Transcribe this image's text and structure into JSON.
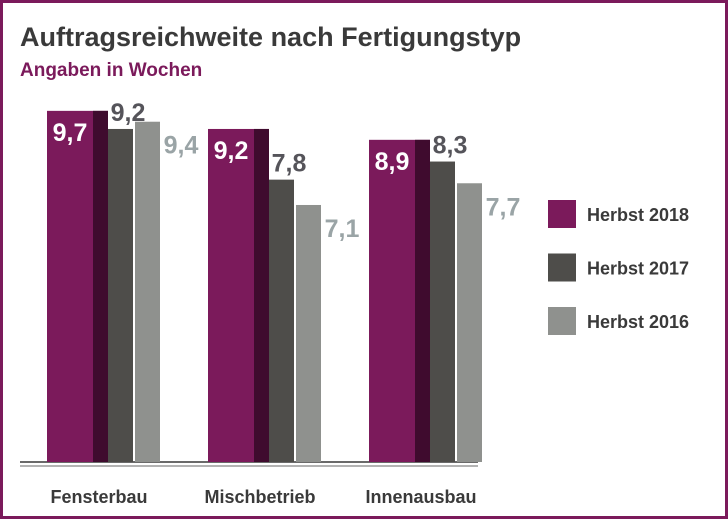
{
  "chart_data": {
    "type": "bar",
    "title": "Auftragsreichweite nach Fertigungstyp",
    "subtitle": "Angaben in Wochen",
    "categories": [
      "Fensterbau",
      "Mischbetrieb",
      "Innenausbau"
    ],
    "series": [
      {
        "name": "Herbst 2018",
        "color": "#7b1a5b",
        "values": [
          9.7,
          9.2,
          8.9
        ],
        "value_labels": [
          "9,7",
          "9,2",
          "8,9"
        ]
      },
      {
        "name": "Herbst 2017",
        "color": "#4e4d4a",
        "values": [
          9.2,
          7.8,
          8.3
        ],
        "value_labels": [
          "9,2",
          "7,8",
          "8,3"
        ]
      },
      {
        "name": "Herbst 2016",
        "color": "#8f918e",
        "values": [
          9.4,
          7.1,
          7.7
        ],
        "value_labels": [
          "9,4",
          "7,1",
          "7,7"
        ]
      }
    ]
  }
}
